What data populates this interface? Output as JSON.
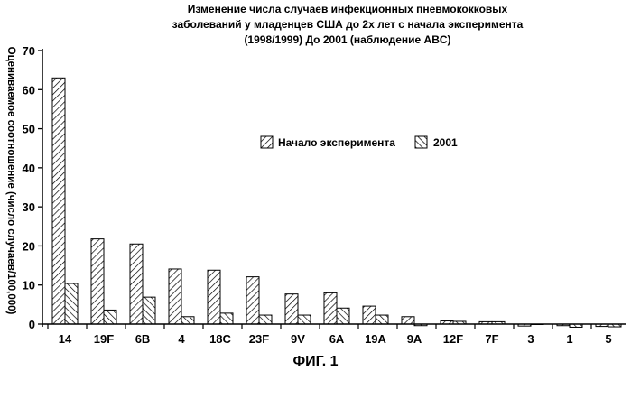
{
  "title_lines": [
    "Изменение числа случаев инфекционных пневмококковых",
    "заболеваний у младенцев США до 2х лет с начала эксперимента",
    "(1998/1999) До 2001 (наблюдение ABC)"
  ],
  "figure_label": "ФИГ. 1",
  "chart_data": {
    "type": "bar",
    "title": "Изменение числа случаев инфекционных пневмококковых заболеваний у младенцев США до 2х лет с начала эксперимента (1998/1999) До 2001 (наблюдение ABC)",
    "xlabel": "",
    "ylabel": "Оцениваемое соотношение (число случаев/100,000)",
    "ylim": [
      0,
      70
    ],
    "yticks": [
      0,
      10,
      20,
      30,
      40,
      50,
      60,
      70
    ],
    "categories": [
      "14",
      "19F",
      "6B",
      "4",
      "18C",
      "23F",
      "9V",
      "6A",
      "19A",
      "9A",
      "12F",
      "7F",
      "3",
      "1",
      "5"
    ],
    "series": [
      {
        "name": "Начало эксперимента",
        "pattern": "hatch-forward",
        "values": [
          63,
          21.8,
          20.5,
          14.1,
          13.8,
          12.1,
          7.7,
          8.0,
          4.6,
          1.9,
          0.8,
          0.6,
          -0.5,
          -0.4,
          -0.6
        ]
      },
      {
        "name": "2001",
        "pattern": "hatch-backward",
        "values": [
          10.4,
          3.6,
          6.9,
          1.9,
          2.8,
          2.3,
          2.3,
          4.1,
          2.3,
          -0.4,
          0.7,
          0.6,
          0.0,
          -0.8,
          -0.7
        ]
      }
    ],
    "legend_position": "center-right",
    "grid": false
  }
}
